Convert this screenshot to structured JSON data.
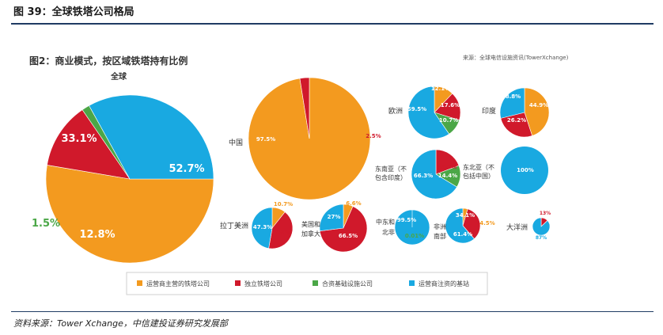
{
  "figure_title": "图 39：全球铁塔公司格局",
  "source_note": "资料来源：Tower Xchange，中信建投证券研究发展部",
  "chart_data": {
    "type": "pie",
    "title": "图2：商业模式，按区域铁塔持有比例",
    "source": "来源：全球电信设施资讯(TowerXchange)",
    "legend_position": "bottom",
    "categories": [
      "运营商主营的铁塔公司",
      "独立铁塔公司",
      "合资基础设施公司",
      "运营商注资的基站"
    ],
    "colors": [
      "#F39A1F",
      "#D0192B",
      "#4BA747",
      "#19A9E1"
    ],
    "pies": [
      {
        "name": "全球",
        "values": [
          52.7,
          12.8,
          1.5,
          33.1
        ],
        "labels": [
          "52.7%",
          "12.8%",
          "1.5%",
          "33.1%"
        ]
      },
      {
        "name": "中国",
        "values": [
          97.5,
          2.5,
          0,
          0
        ],
        "labels": [
          "97.5%",
          "2.5%",
          "",
          ""
        ]
      },
      {
        "name": "欧洲",
        "values": [
          12.1,
          17.6,
          10.7,
          59.5
        ],
        "labels": [
          "12.1%",
          "17.6%",
          "10.7%",
          "59.5%"
        ]
      },
      {
        "name": "印度",
        "values": [
          44.9,
          26.2,
          0,
          28.8
        ],
        "labels": [
          "44.9%",
          "26.2%",
          "",
          "28.8%"
        ]
      },
      {
        "name": "东南亚（不包含印度）",
        "values": [
          0,
          19.3,
          14.4,
          66.3
        ],
        "labels": [
          "",
          "19.3%",
          "14.4%",
          "66.3%"
        ]
      },
      {
        "name": "东北亚（不包括中国）",
        "values": [
          0,
          0,
          0,
          100
        ],
        "labels": [
          "",
          "",
          "",
          "100%"
        ]
      },
      {
        "name": "拉丁美洲",
        "values": [
          10.7,
          42,
          0,
          47.3
        ],
        "labels": [
          "10.7%",
          "42%",
          "",
          "47.3%"
        ]
      },
      {
        "name": "美国和加拿大",
        "values": [
          6.6,
          66.5,
          0,
          27
        ],
        "labels": [
          "6.6%",
          "66.5%",
          "",
          "27%"
        ]
      },
      {
        "name": "中东和北非",
        "values": [
          0,
          0,
          0.01,
          99.5
        ],
        "labels": [
          "",
          "",
          "0.01%",
          "99.5%"
        ]
      },
      {
        "name": "非洲南部",
        "values": [
          4.5,
          34.1,
          0,
          61.4
        ],
        "labels": [
          "4.5%",
          "34.1%",
          "",
          "61.4%"
        ]
      },
      {
        "name": "大洋洲",
        "values": [
          0,
          13,
          0,
          87
        ],
        "labels": [
          "",
          "13%",
          "",
          "87%"
        ]
      }
    ]
  }
}
